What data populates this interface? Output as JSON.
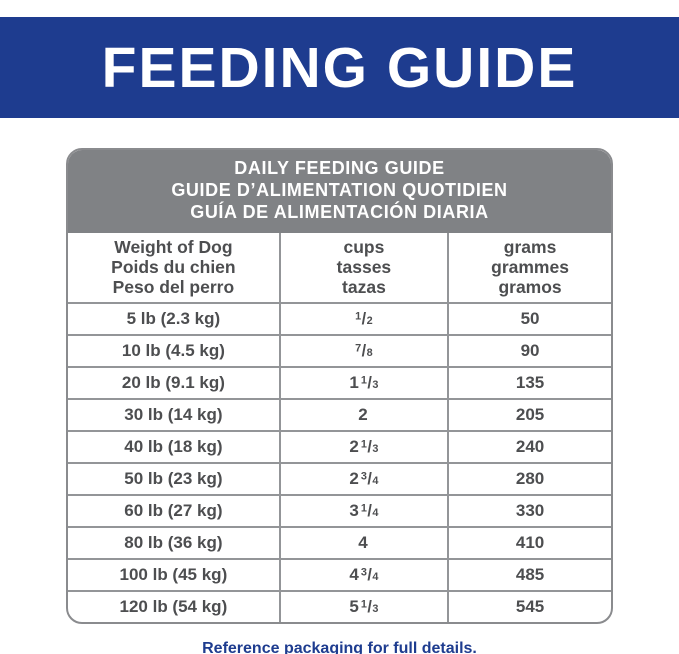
{
  "colors": {
    "brand_blue": "#1e3c8f",
    "header_gray": "#808285",
    "grid_gray": "#939598",
    "text_gray": "#4d4e50"
  },
  "banner": {
    "title": "FEEDING GUIDE"
  },
  "table": {
    "title_lines": [
      "DAILY FEEDING GUIDE",
      "GUIDE D’ALIMENTATION QUOTIDIEN",
      "GUÍA DE ALIMENTACIÓN DIARIA"
    ],
    "columns": [
      {
        "lines": [
          "Weight of Dog",
          "Poids du chien",
          "Peso del perro"
        ]
      },
      {
        "lines": [
          "cups",
          "tasses",
          "tazas"
        ]
      },
      {
        "lines": [
          "grams",
          "grammes",
          "gramos"
        ]
      }
    ],
    "rows": [
      {
        "weight": "5 lb (2.3 kg)",
        "cups_whole": "",
        "cups_num": "1",
        "cups_den": "2",
        "grams": "50"
      },
      {
        "weight": "10 lb (4.5 kg)",
        "cups_whole": "",
        "cups_num": "7",
        "cups_den": "8",
        "grams": "90"
      },
      {
        "weight": "20 lb (9.1 kg)",
        "cups_whole": "1",
        "cups_num": "1",
        "cups_den": "3",
        "grams": "135"
      },
      {
        "weight": "30 lb (14 kg)",
        "cups_whole": "2",
        "cups_num": "",
        "cups_den": "",
        "grams": "205"
      },
      {
        "weight": "40 lb (18 kg)",
        "cups_whole": "2",
        "cups_num": "1",
        "cups_den": "3",
        "grams": "240"
      },
      {
        "weight": "50 lb (23 kg)",
        "cups_whole": "2",
        "cups_num": "3",
        "cups_den": "4",
        "grams": "280"
      },
      {
        "weight": "60 lb (27 kg)",
        "cups_whole": "3",
        "cups_num": "1",
        "cups_den": "4",
        "grams": "330"
      },
      {
        "weight": "80 lb (36 kg)",
        "cups_whole": "4",
        "cups_num": "",
        "cups_den": "",
        "grams": "410"
      },
      {
        "weight": "100 lb (45 kg)",
        "cups_whole": "4",
        "cups_num": "3",
        "cups_den": "4",
        "grams": "485"
      },
      {
        "weight": "120 lb (54 kg)",
        "cups_whole": "5",
        "cups_num": "1",
        "cups_den": "3",
        "grams": "545"
      }
    ]
  },
  "footer": {
    "note": "Reference packaging for full details."
  }
}
